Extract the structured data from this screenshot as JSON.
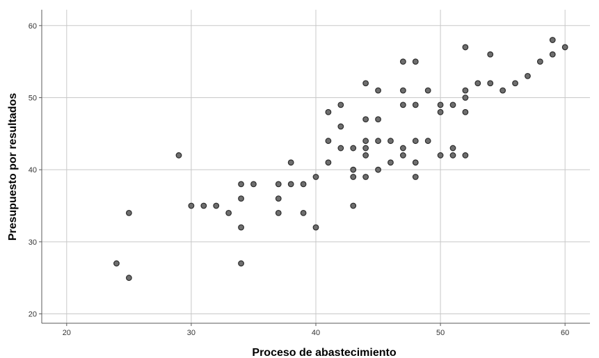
{
  "chart_data": {
    "type": "scatter",
    "title": "",
    "xlabel": "Proceso de abastecimiento",
    "ylabel": "Presupuesto por resultados",
    "xlim": [
      18,
      62
    ],
    "ylim": [
      18.7,
      62.2
    ],
    "xticks": [
      20,
      30,
      40,
      50,
      60
    ],
    "yticks": [
      20,
      30,
      40,
      50,
      60
    ],
    "grid": true,
    "legend": "none",
    "point_color": "#6e6e6e",
    "series": [
      {
        "points": [
          [
            24,
            27
          ],
          [
            25,
            34
          ],
          [
            25,
            25
          ],
          [
            29,
            42
          ],
          [
            30,
            35
          ],
          [
            31,
            35
          ],
          [
            32,
            35
          ],
          [
            33,
            34
          ],
          [
            34,
            38
          ],
          [
            34,
            36
          ],
          [
            34,
            32
          ],
          [
            34,
            27
          ],
          [
            35,
            38
          ],
          [
            37,
            38
          ],
          [
            37,
            36
          ],
          [
            37,
            34
          ],
          [
            38,
            41
          ],
          [
            38,
            38
          ],
          [
            39,
            38
          ],
          [
            39,
            34
          ],
          [
            40,
            39
          ],
          [
            40,
            32
          ],
          [
            41,
            48
          ],
          [
            41,
            44
          ],
          [
            41,
            41
          ],
          [
            42,
            49
          ],
          [
            42,
            46
          ],
          [
            42,
            43
          ],
          [
            43,
            43
          ],
          [
            43,
            40
          ],
          [
            43,
            39
          ],
          [
            43,
            35
          ],
          [
            44,
            52
          ],
          [
            44,
            47
          ],
          [
            44,
            44
          ],
          [
            44,
            43
          ],
          [
            44,
            42
          ],
          [
            44,
            39
          ],
          [
            45,
            51
          ],
          [
            45,
            47
          ],
          [
            45,
            44
          ],
          [
            45,
            40
          ],
          [
            46,
            44
          ],
          [
            46,
            41
          ],
          [
            47,
            55
          ],
          [
            47,
            51
          ],
          [
            47,
            49
          ],
          [
            47,
            43
          ],
          [
            47,
            42
          ],
          [
            48,
            55
          ],
          [
            48,
            49
          ],
          [
            48,
            44
          ],
          [
            48,
            41
          ],
          [
            48,
            39
          ],
          [
            49,
            51
          ],
          [
            49,
            44
          ],
          [
            50,
            49
          ],
          [
            50,
            48
          ],
          [
            50,
            42
          ],
          [
            51,
            49
          ],
          [
            51,
            43
          ],
          [
            51,
            42
          ],
          [
            52,
            57
          ],
          [
            52,
            51
          ],
          [
            52,
            50
          ],
          [
            52,
            48
          ],
          [
            52,
            42
          ],
          [
            53,
            52
          ],
          [
            54,
            56
          ],
          [
            54,
            52
          ],
          [
            55,
            51
          ],
          [
            56,
            52
          ],
          [
            57,
            53
          ],
          [
            58,
            55
          ],
          [
            59,
            58
          ],
          [
            59,
            56
          ],
          [
            60,
            57
          ]
        ]
      }
    ]
  }
}
